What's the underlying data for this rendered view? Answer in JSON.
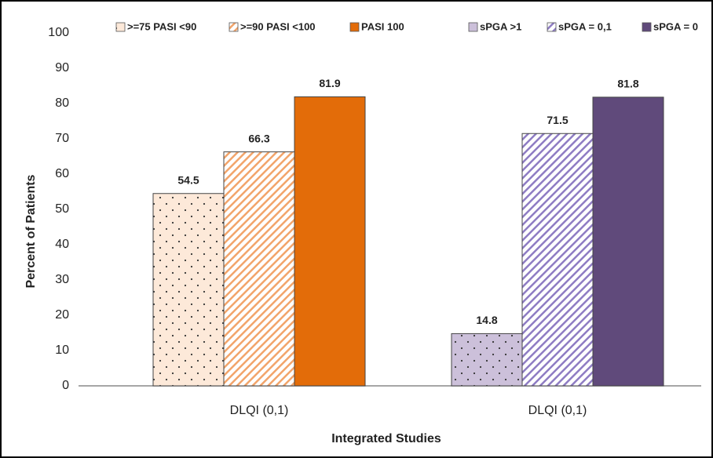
{
  "chart_data": {
    "type": "bar",
    "y_label": "Percent of Patients",
    "x_label": "Integrated Studies",
    "categories": [
      "DLQI (0,1)",
      "DLQI (0,1)"
    ],
    "series": [
      {
        "name": ">=75 PASI <90",
        "color": "#fde9d9",
        "pattern": "dots",
        "values": [
          54.5,
          null
        ]
      },
      {
        "name": ">=90 PASI <100",
        "color": "#f2a46a",
        "pattern": "hatch",
        "values": [
          66.3,
          null
        ]
      },
      {
        "name": "PASI 100",
        "color": "#e36c09",
        "pattern": "solid",
        "values": [
          81.9,
          null
        ]
      },
      {
        "name": "sPGA >1",
        "color": "#ccc0da",
        "pattern": "dots",
        "values": [
          null,
          14.8
        ]
      },
      {
        "name": "sPGA = 0,1",
        "color": "#8e7cc3",
        "pattern": "hatch",
        "values": [
          null,
          71.5
        ]
      },
      {
        "name": "sPGA = 0",
        "color": "#604a7b",
        "pattern": "solid",
        "values": [
          null,
          81.8
        ]
      }
    ],
    "ylim": [
      0,
      100
    ],
    "yticks": [
      0,
      10,
      20,
      30,
      40,
      50,
      60,
      70,
      80,
      90,
      100
    ],
    "grid": false,
    "legend": "top"
  }
}
